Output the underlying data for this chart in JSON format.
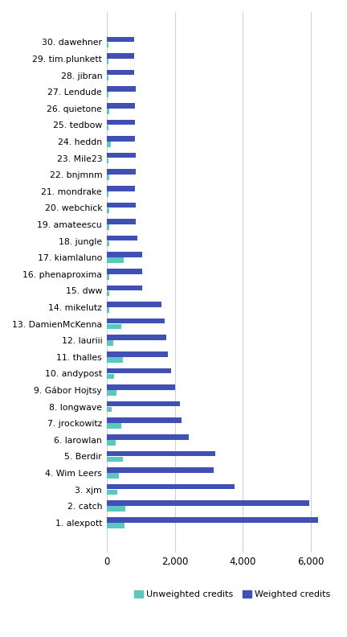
{
  "categories": [
    "30. dawehner",
    "29. tim.plunkett",
    "28. jibran",
    "27. Lendude",
    "26. quietone",
    "25. tedbow",
    "24. heddn",
    "23. Mile23",
    "22. bnjmnm",
    "21. mondrake",
    "20. webchick",
    "19. amateescu",
    "18. jungle",
    "17. kiamlaluno",
    "16. phenaproxima",
    "15. dww",
    "14. mikelutz",
    "13. DamienMcKenna",
    "12. lauriii",
    "11. thalles",
    "10. andypost",
    "9. Gábor Hojtsy",
    "8. longwave",
    "7. jrockowitz",
    "6. larowlan",
    "5. Berdir",
    "4. Wim Leers",
    "3. xjm",
    "2. catch",
    "1. alexpott"
  ],
  "weighted": [
    800,
    820,
    800,
    850,
    840,
    840,
    840,
    850,
    850,
    840,
    860,
    860,
    900,
    1050,
    1050,
    1050,
    1600,
    1700,
    1750,
    1800,
    1900,
    2000,
    2150,
    2200,
    2400,
    3200,
    3150,
    3750,
    5950,
    6200
  ],
  "unweighted": [
    50,
    60,
    60,
    50,
    70,
    60,
    130,
    60,
    70,
    65,
    80,
    80,
    90,
    500,
    80,
    90,
    70,
    420,
    200,
    470,
    230,
    290,
    150,
    430,
    270,
    470,
    360,
    310,
    540,
    520
  ],
  "weighted_color": "#3F51B5",
  "unweighted_color": "#5BC8C0",
  "background_color": "#FFFFFF",
  "grid_color": "#D0D0D0",
  "legend_unweighted": "Unweighted credits",
  "legend_weighted": "Weighted credits",
  "xlim": [
    0,
    6700
  ],
  "xticks": [
    0,
    2000,
    4000,
    6000
  ],
  "xtick_labels": [
    "0",
    "2,000",
    "4,000",
    "6,000"
  ]
}
